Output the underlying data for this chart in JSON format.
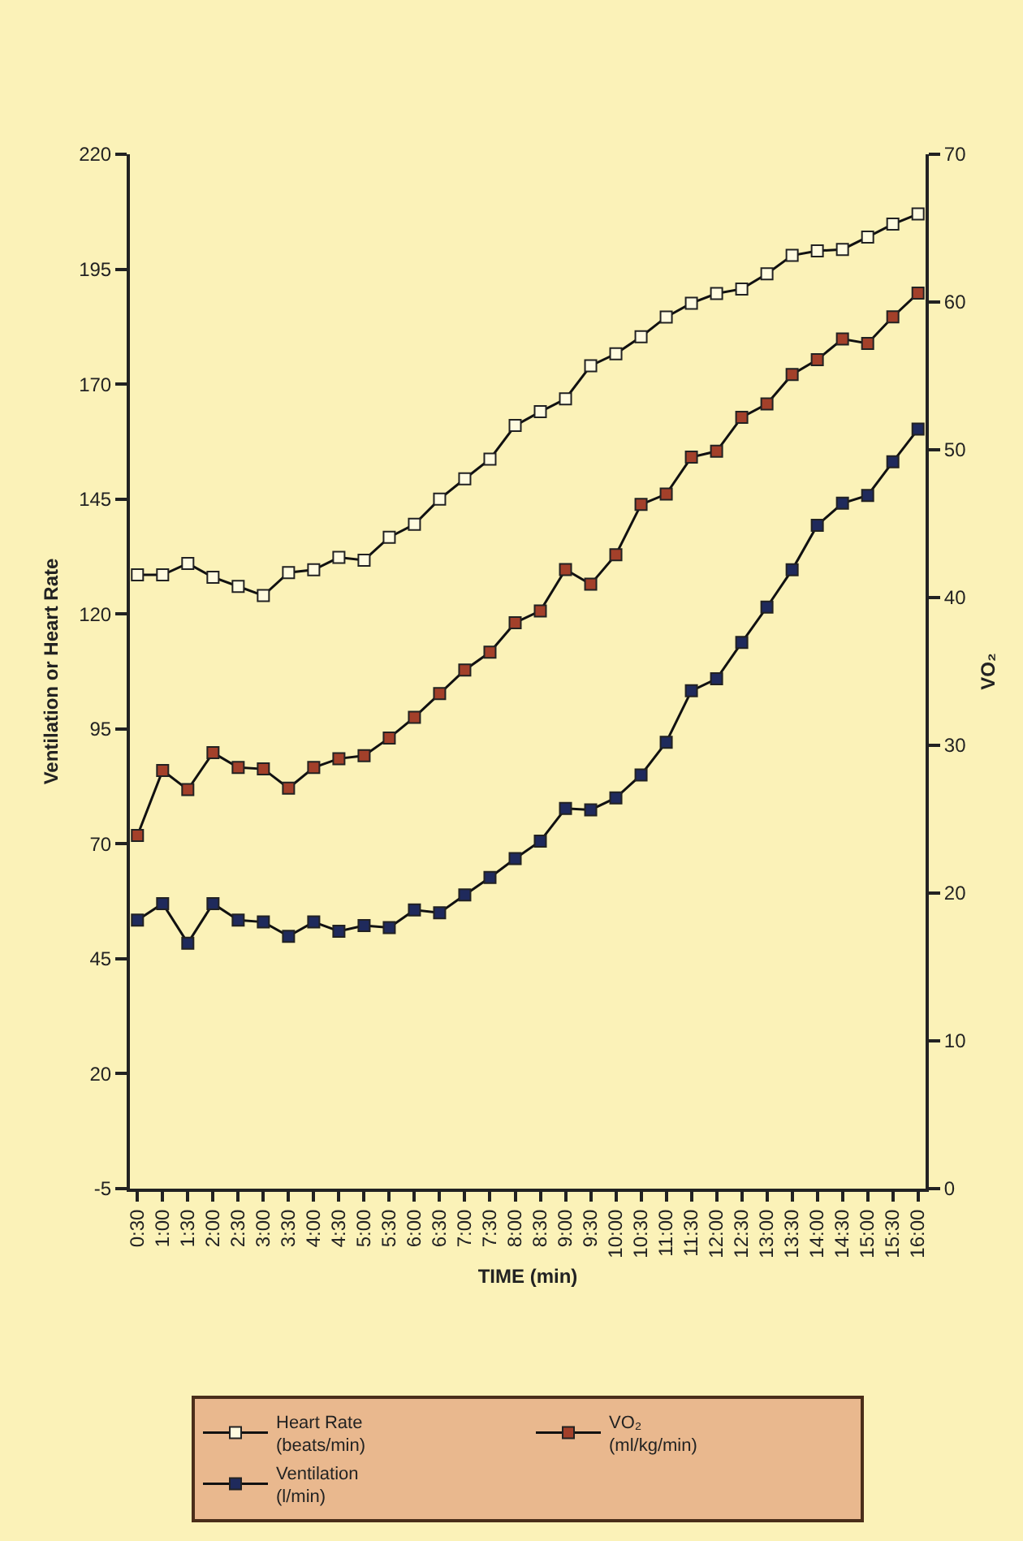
{
  "chart_data": {
    "type": "line",
    "xlabel": "TIME (min)",
    "ylabel": "Ventilation or Heart Rate",
    "y2label": "VO₂",
    "categories": [
      "0:30",
      "1:00",
      "1:30",
      "2:00",
      "2:30",
      "3:00",
      "3:30",
      "4:00",
      "4:30",
      "5:00",
      "5:30",
      "6:00",
      "6:30",
      "7:00",
      "7:30",
      "8:00",
      "8:30",
      "9:00",
      "9:30",
      "10:00",
      "10:30",
      "11:00",
      "11:30",
      "12:00",
      "12:30",
      "13:00",
      "13:30",
      "14:00",
      "14:30",
      "15:00",
      "15:30",
      "16:00"
    ],
    "series": [
      {
        "name": "Heart Rate\n(beats/min)",
        "color": "#fffbe0",
        "values": [
          128.5,
          128.5,
          131,
          128,
          126,
          124,
          129,
          129.6,
          132.3,
          131.7,
          136.7,
          139.5,
          145,
          149.4,
          153.7,
          161,
          164,
          166.8,
          174,
          176.6,
          180.3,
          184.6,
          187.6,
          189.7,
          190.7,
          194,
          198,
          199,
          199.3,
          202,
          204.8,
          207
        ]
      },
      {
        "name": "VO₂\n(ml/kg/min)",
        "color": "#a3402a",
        "axis": "y2",
        "values": [
          23.9,
          28.3,
          27,
          29.5,
          28.5,
          28.4,
          27.1,
          28.5,
          29.1,
          29.3,
          30.5,
          31.9,
          33.5,
          35.1,
          36.3,
          38.3,
          39.1,
          41.9,
          40.9,
          42.9,
          46.3,
          47,
          49.5,
          49.9,
          52.2,
          53.1,
          55.1,
          56.1,
          57.5,
          57.2,
          59,
          60.6
        ]
      },
      {
        "name": "Ventilation\n(l/min)",
        "color": "#1f2a5c",
        "values": [
          53.4,
          57,
          48.4,
          57,
          53.4,
          53,
          49.9,
          53,
          51,
          52.2,
          51.8,
          55.6,
          55,
          58.9,
          62.7,
          66.8,
          70.6,
          77.7,
          77.4,
          80,
          85,
          92.1,
          103.3,
          105.9,
          113.8,
          121.5,
          129.6,
          139.3,
          144.1,
          145.8,
          153.1,
          160.2
        ]
      }
    ],
    "ylim": [
      -5,
      220
    ],
    "yticks": [
      -5,
      20,
      45,
      70,
      95,
      120,
      145,
      170,
      195,
      220
    ],
    "y2lim": [
      0,
      70
    ],
    "y2ticks": [
      0,
      10,
      20,
      30,
      40,
      50,
      60,
      70
    ],
    "marker": "square",
    "line_style": "solid",
    "grid": false,
    "legend": "bottom"
  }
}
